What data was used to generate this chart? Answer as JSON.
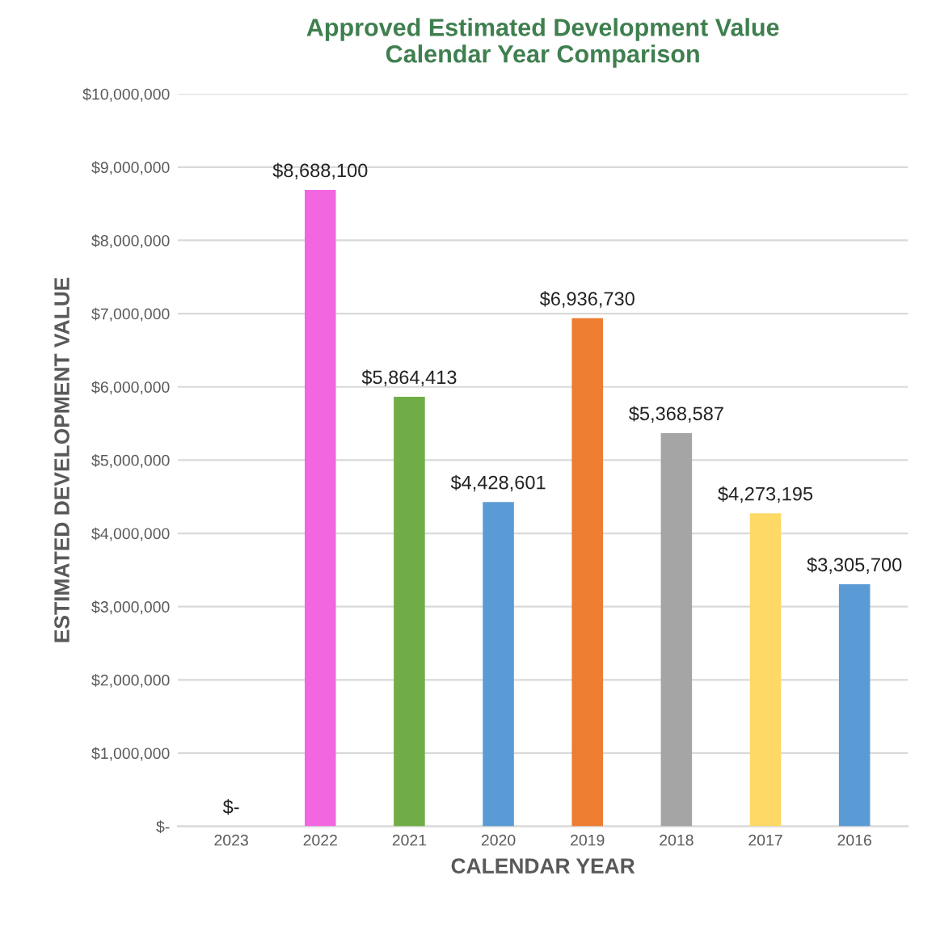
{
  "chart_data": {
    "type": "bar",
    "title": "Approved Estimated Development Value\nCalendar Year Comparison",
    "xlabel": "CALENDAR YEAR",
    "ylabel": "ESTIMATED DEVELOPMENT VALUE",
    "categories": [
      "2023",
      "2022",
      "2021",
      "2020",
      "2019",
      "2018",
      "2017",
      "2016"
    ],
    "values": [
      0,
      8688100,
      5864413,
      4428601,
      6936730,
      5368587,
      4273195,
      3305700
    ],
    "colors": [
      "#5b9bd5",
      "#f266e0",
      "#70ad47",
      "#5b9bd5",
      "#ed7d31",
      "#a5a5a5",
      "#ffd966",
      "#5b9bd5"
    ],
    "value_labels": [
      "$-",
      "$8,688,100",
      "$5,864,413",
      "$4,428,601",
      "$6,936,730",
      "$5,368,587",
      "$4,273,195",
      "$3,305,700"
    ],
    "ylim": [
      0,
      10000000
    ],
    "yticks": [
      {
        "value": 0,
        "label": "$-"
      },
      {
        "value": 1000000,
        "label": "$1,000,000"
      },
      {
        "value": 2000000,
        "label": "$2,000,000"
      },
      {
        "value": 3000000,
        "label": "$3,000,000"
      },
      {
        "value": 4000000,
        "label": "$4,000,000"
      },
      {
        "value": 5000000,
        "label": "$5,000,000"
      },
      {
        "value": 6000000,
        "label": "$6,000,000"
      },
      {
        "value": 7000000,
        "label": "$7,000,000"
      },
      {
        "value": 8000000,
        "label": "$8,000,000"
      },
      {
        "value": 9000000,
        "label": "$9,000,000"
      },
      {
        "value": 10000000,
        "label": "$10,000,000"
      }
    ],
    "grid": "y",
    "legend": false
  }
}
